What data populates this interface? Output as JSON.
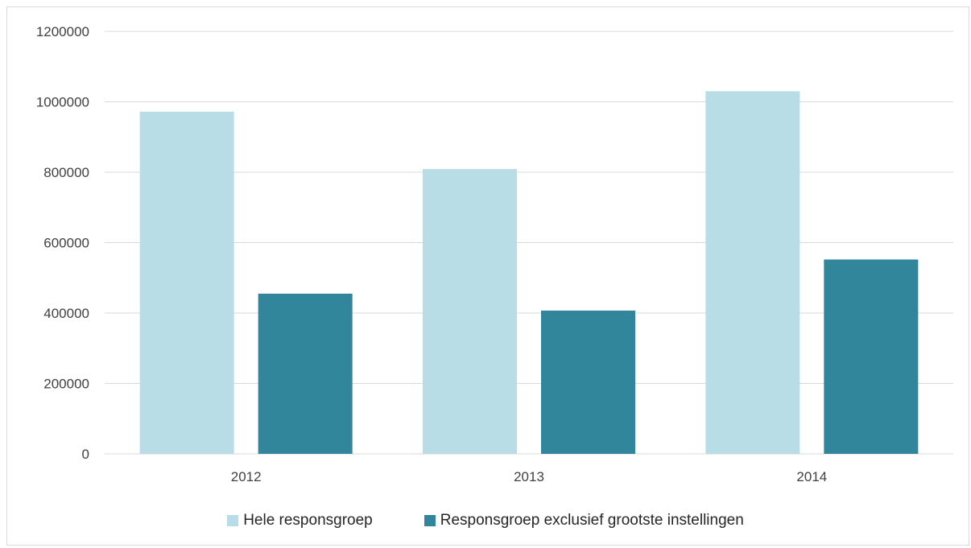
{
  "chart_data": {
    "type": "bar",
    "categories": [
      "2012",
      "2013",
      "2014"
    ],
    "series": [
      {
        "name": "Hele responsgroep",
        "values": [
          972000,
          809000,
          1030000
        ],
        "color": "#b8dde6"
      },
      {
        "name": "Responsgroep exclusief grootste instellingen",
        "values": [
          455000,
          407000,
          552000
        ],
        "color": "#31869b"
      }
    ],
    "yticks": [
      "0",
      "200000",
      "400000",
      "600000",
      "800000",
      "1000000",
      "1200000"
    ],
    "ylim": [
      0,
      1200000
    ],
    "grid": true,
    "legend_position": "bottom",
    "title": "",
    "xlabel": "",
    "ylabel": ""
  }
}
